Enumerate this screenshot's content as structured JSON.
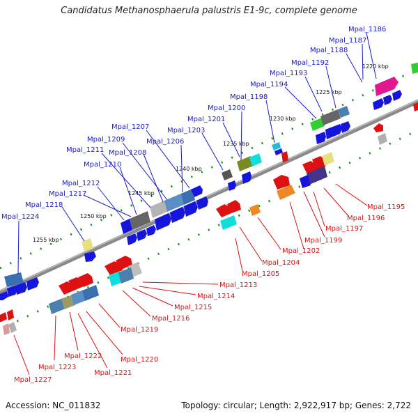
{
  "title": "Candidatus Methanosphaerula palustris E1-9c, complete genome",
  "footer": {
    "accession_label": "Accession: NC_011832",
    "topology_label": "Topology: circular; Length: 2,922,917 bp; Genes: 2,722"
  },
  "colors": {
    "forward_label": "#1a1acc",
    "reverse_label": "#dd1111",
    "backbone": "#8a8a8a",
    "tick": "#1a8a1a"
  },
  "scale_labels": [
    "1220 kbp",
    "1225 kbp",
    "1230 kbp",
    "1235 kbp",
    "1240 kbp",
    "1245 kbp",
    "1250 kbp",
    "1255 kbp"
  ],
  "forward_genes": [
    "Mpal_1186",
    "Mpal_1187",
    "Mpal_1188",
    "Mpal_1192",
    "Mpal_1193",
    "Mpal_1194",
    "Mpal_1198",
    "Mpal_1200",
    "Mpal_1201",
    "Mpal_1203",
    "Mpal_1207",
    "Mpal_1206",
    "Mpal_1209",
    "Mpal_1208",
    "Mpal_1211",
    "Mpal_1210",
    "Mpal_1212",
    "Mpal_1217",
    "Mpal_1218",
    "Mpal_1224"
  ],
  "reverse_genes": [
    "Mpal_1195",
    "Mpal_1196",
    "Mpal_1197",
    "Mpal_1199",
    "Mpal_1202",
    "Mpal_1204",
    "Mpal_1205",
    "Mpal_1213",
    "Mpal_1214",
    "Mpal_1215",
    "Mpal_1216",
    "Mpal_1219",
    "Mpal_1220",
    "Mpal_1221",
    "Mpal_1222",
    "Mpal_1223",
    "Mpal_1227"
  ]
}
